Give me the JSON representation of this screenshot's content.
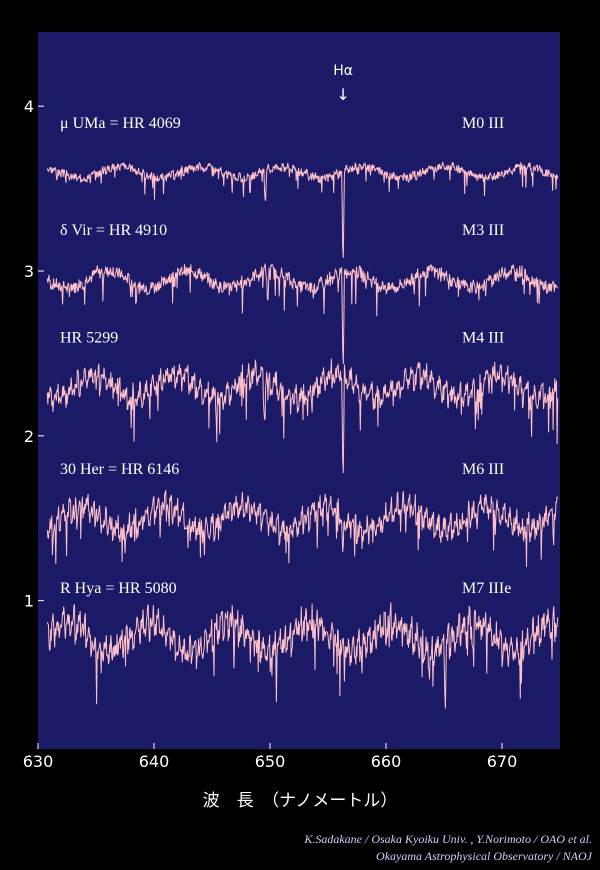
{
  "colors": {
    "background": "#000000",
    "plot_background": "#1a1a66",
    "spectrum": "#ffc0c8",
    "halpha": "#a8b8ff",
    "text": "#ffffff",
    "credit": "#c8d4ff"
  },
  "chart_data": {
    "type": "line",
    "title": "",
    "xlabel": "波　長　（ナノメートル）",
    "ylabel": "",
    "xlim": [
      630,
      675
    ],
    "ylim": [
      0.1,
      4.45
    ],
    "x_ticks": [
      630,
      640,
      650,
      660,
      670
    ],
    "y_ticks": [
      1,
      2,
      3,
      4
    ],
    "grid": false,
    "annotation": {
      "label": "Hα",
      "x": 656.3,
      "symbol": "↓"
    },
    "series": [
      {
        "name": "μ  UMa = HR 4069",
        "spectral_type": "M0 III",
        "baseline": 3.6,
        "amplitude": 0.1,
        "lines": [
          {
            "x": 649.6,
            "depth": 0.25
          },
          {
            "x": 656.3,
            "depth": 0.6
          }
        ],
        "seed": 3
      },
      {
        "name": "δ  Vir = HR 4910",
        "spectral_type": "M3 III",
        "baseline": 2.95,
        "amplitude": 0.15,
        "lines": [
          {
            "x": 649.8,
            "depth": 0.2
          },
          {
            "x": 656.3,
            "depth": 0.65
          }
        ],
        "seed": 7
      },
      {
        "name": "HR 5299",
        "spectral_type": "M4 III",
        "baseline": 2.3,
        "amplitude": 0.2,
        "lines": [
          {
            "x": 649.5,
            "depth": 0.25
          },
          {
            "x": 656.3,
            "depth": 0.7
          }
        ],
        "seed": 11
      },
      {
        "name": "30 Her = HR 6146",
        "spectral_type": "M6 III",
        "baseline": 1.5,
        "amplitude": 0.2,
        "lines": [
          {
            "x": 656.3,
            "depth": 0.3
          }
        ],
        "seed": 17
      },
      {
        "name": "R Hya = HR 5080",
        "spectral_type": "M7 IIIe",
        "baseline": 0.78,
        "amplitude": 0.25,
        "lines": [
          {
            "x": 665.1,
            "depth": 0.35
          },
          {
            "x": 667.5,
            "depth": 0.25
          }
        ],
        "seed": 23
      }
    ]
  },
  "credits": {
    "line1": "K.Sadakane / Osaka Kyoiku Univ. , Y.Norimoto / OAO et al.",
    "line2": "Okayama Astrophysical Observatory / NAOJ"
  }
}
